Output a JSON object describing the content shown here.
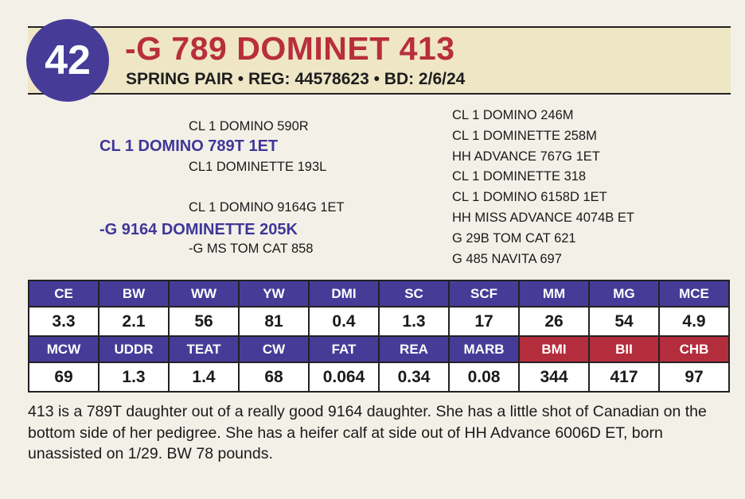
{
  "lot": "42",
  "title": "-G 789 DOMINET 413",
  "subtitle": "SPRING PAIR • REG: 44578623 • BD: 2/6/24",
  "pedigree": {
    "sire_sire": "CL 1 DOMINO 590R",
    "sire": "CL 1 DOMINO 789T 1ET",
    "sire_dam": "CL1 DOMINETTE 193L",
    "dam_sire": "CL 1 DOMINO 9164G 1ET",
    "dam": "-G 9164 DOMINETTE 205K",
    "dam_dam": "-G MS TOM CAT 858",
    "third_gen": [
      "CL 1 DOMINO 246M",
      "CL 1 DOMINETTE 258M",
      "HH ADVANCE 767G 1ET",
      "CL 1 DOMINETTE 318",
      "CL 1 DOMINO 6158D 1ET",
      "HH MISS ADVANCE 4074B ET",
      "G 29B TOM CAT 621",
      "G 485 NAVITA 697"
    ]
  },
  "epds": {
    "row1_headers": [
      "CE",
      "BW",
      "WW",
      "YW",
      "DMI",
      "SC",
      "SCF",
      "MM",
      "MG",
      "MCE"
    ],
    "row1_values": [
      "3.3",
      "2.1",
      "56",
      "81",
      "0.4",
      "1.3",
      "17",
      "26",
      "54",
      "4.9"
    ],
    "row2_headers": [
      "MCW",
      "UDDR",
      "TEAT",
      "CW",
      "FAT",
      "REA",
      "MARB",
      "BMI",
      "BII",
      "CHB"
    ],
    "row2_values": [
      "69",
      "1.3",
      "1.4",
      "68",
      "0.064",
      "0.34",
      "0.08",
      "344",
      "417",
      "97"
    ]
  },
  "colors": {
    "purple": "#463c98",
    "red": "#b32d3c",
    "title_red": "#b82f3c",
    "band": "#efe6c6"
  },
  "description": "413 is a 789T daughter out of a really good 9164 daughter. She has a little shot of Canadian on the bottom side of her pedigree. She has a heifer calf at side out of HH Advance 6006D ET, born unassisted on 1/29. BW 78 pounds."
}
